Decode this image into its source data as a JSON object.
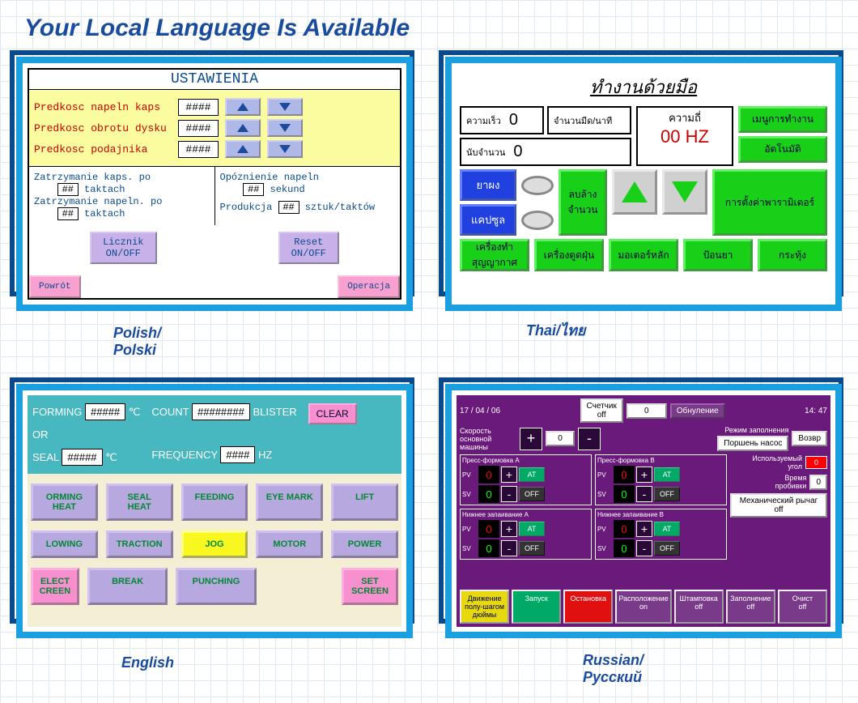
{
  "title": "Your Local Language Is Available",
  "polish": {
    "label": "Polish/\nPolski",
    "header": "USTAWIENIA",
    "rows": [
      {
        "label": "Predkosc napeln kaps",
        "value": "####"
      },
      {
        "label": "Predkosc obrotu dysku",
        "value": "####"
      },
      {
        "label": "Predkosc podajnika",
        "value": "####"
      }
    ],
    "left": {
      "l1": "Zatrzymanie kaps. po",
      "v1": "##",
      "u1": "taktach",
      "l2": "Zatrzymanie napeln. po",
      "v2": "##",
      "u2": "taktach"
    },
    "right": {
      "l1": "Opóznienie napeln",
      "v1": "##",
      "u1": "sekund",
      "l2": "Produkcja",
      "v2": "##",
      "u2": "sztuk/taktów"
    },
    "btn1": "Licznik\nON/OFF",
    "btn2": "Reset\nON/OFF",
    "back": "Powrót",
    "oper": "Operacja"
  },
  "thai": {
    "label": "Thai/ไทย",
    "header": "ทำงานด้วยมือ",
    "speed_lbl": "ความเร็ว",
    "speed_val": "0",
    "count_lbl": "จำนวนมีด/นาที",
    "count2_lbl": "นับจำนวน",
    "count2_val": "0",
    "freq_lbl": "ความถี่",
    "freq_val": "00",
    "freq_unit": "HZ",
    "menu1": "เมนูการทำงาน",
    "menu2": "อัตโนมัติ",
    "menu3": "การตั้งค่าพารามิเตอร์",
    "blue1": "ยาผง",
    "blue2": "แคปซูล",
    "clear": "ลบล้าง\nจำนวน",
    "bot": [
      "เครื่องทำสุญญากาศ",
      "เครื่องดูดฝุ่น",
      "มอเตอร์หลัก",
      "ป้อนยา",
      "กระทุ้ง"
    ]
  },
  "english": {
    "label": "English",
    "forming": "FORMING",
    "forming_val": "#####",
    "or": "OR",
    "seal": "SEAL",
    "seal_val": "#####",
    "degc": "℃",
    "count": "COUNT",
    "count_val": "########",
    "blister": "BLISTER",
    "freq": "FREQUENCY",
    "freq_val": "####",
    "hz": "HZ",
    "clear": "CLEAR",
    "row1": [
      "ORMING\nHEAT",
      "SEAL\nHEAT",
      "FEEDING",
      "EYE MARK",
      "LIFT"
    ],
    "row2": [
      "LOWING",
      "TRACTION",
      "JOG",
      "MOTOR",
      "POWER"
    ],
    "row3_l": "ELECT\nCREEN",
    "row3": [
      "BREAK",
      "PUNCHING"
    ],
    "row3_r": "SET\nSCREEN"
  },
  "russian": {
    "label": "Russian/\nРусский",
    "date": "17 / 04 / 06",
    "time": "14: 47",
    "counter": "Счетчик\noff",
    "counter_val": "0",
    "reset": "Обнуление",
    "return": "Возвр",
    "speed_lbl": "Скорость\nосновной\nмашины",
    "speed_val": "0",
    "mode": "Режим заполнения",
    "piston": "Поршень насос",
    "blocks": [
      {
        "title": "Пресс-формовка A",
        "pv": "0",
        "sv": "0"
      },
      {
        "title": "Пресс-формовка B",
        "pv": "0",
        "sv": "0"
      },
      {
        "title": "Нижнее запаивание A",
        "pv": "0",
        "sv": "0"
      },
      {
        "title": "Нижнее запаивание B",
        "pv": "0",
        "sv": "0"
      }
    ],
    "at": "AT",
    "off": "OFF",
    "angle_lbl": "Используемый\nугол",
    "angle_val": "0",
    "time_lbl": "Время\nпробивки",
    "time_val": "0",
    "lever": "Механический рычаг\noff",
    "bot": [
      {
        "t": "Движение\nполу-шагом\nдюймы",
        "c": "yel"
      },
      {
        "t": "Запуск",
        "c": "grn2"
      },
      {
        "t": "Остановка",
        "c": "red2"
      },
      {
        "t": "Расположение\non",
        "c": "pur"
      },
      {
        "t": "Штамповка\noff",
        "c": "pur"
      },
      {
        "t": "Заполнение\noff",
        "c": "pur"
      },
      {
        "t": "Очист\noff",
        "c": "pur"
      }
    ]
  }
}
